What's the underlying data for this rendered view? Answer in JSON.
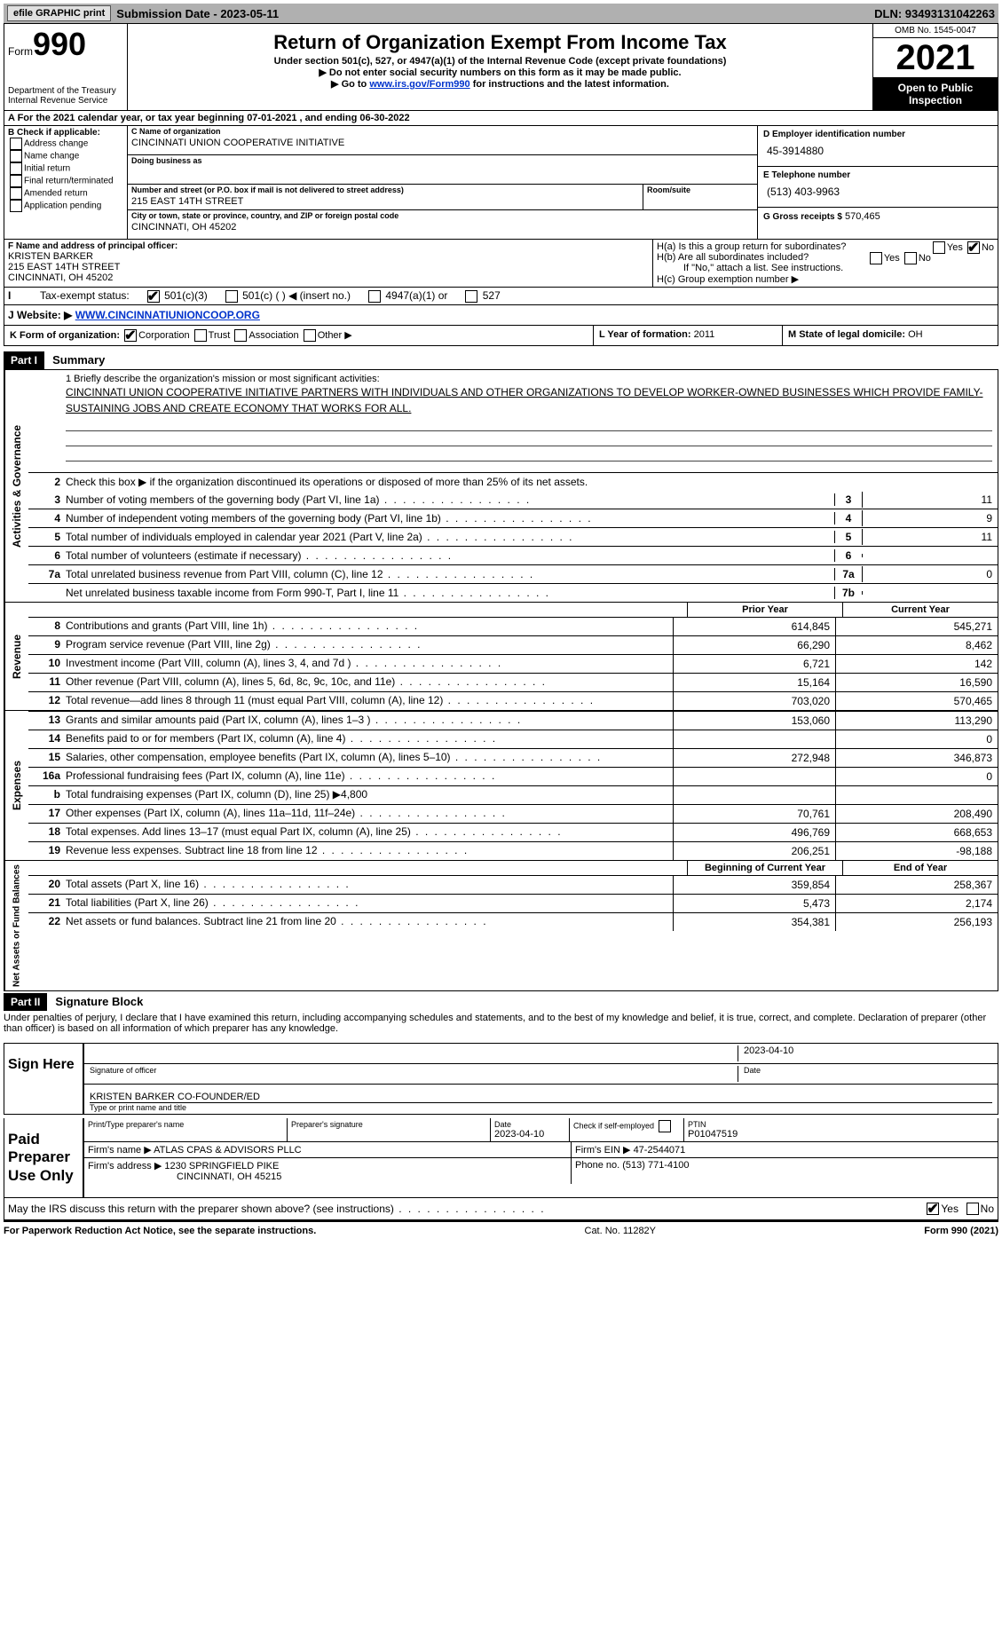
{
  "topbar": {
    "efile": "efile GRAPHIC print",
    "sub_date_label": "Submission Date - 2023-05-11",
    "dln": "DLN: 93493131042263"
  },
  "header": {
    "form_label": "Form",
    "form_num": "990",
    "dept": "Department of the Treasury",
    "irs": "Internal Revenue Service",
    "title": "Return of Organization Exempt From Income Tax",
    "sub1": "Under section 501(c), 527, or 4947(a)(1) of the Internal Revenue Code (except private foundations)",
    "sub2": "▶ Do not enter social security numbers on this form as it may be made public.",
    "sub3_pre": "▶ Go to ",
    "sub3_link": "www.irs.gov/Form990",
    "sub3_post": " for instructions and the latest information.",
    "omb": "OMB No. 1545-0047",
    "year": "2021",
    "inspect": "Open to Public Inspection"
  },
  "row_a": "A For the 2021 calendar year, or tax year beginning 07-01-2021   , and ending 06-30-2022",
  "box_b": {
    "hdr": "B Check if applicable:",
    "opts": [
      "Address change",
      "Name change",
      "Initial return",
      "Final return/terminated",
      "Amended return",
      "Application pending"
    ]
  },
  "box_c": {
    "name_lbl": "C Name of organization",
    "name": "CINCINNATI UNION COOPERATIVE INITIATIVE",
    "dba_lbl": "Doing business as",
    "street_lbl": "Number and street (or P.O. box if mail is not delivered to street address)",
    "room_lbl": "Room/suite",
    "street": "215 EAST 14TH STREET",
    "city_lbl": "City or town, state or province, country, and ZIP or foreign postal code",
    "city": "CINCINNATI, OH  45202"
  },
  "box_d": {
    "ein_lbl": "D Employer identification number",
    "ein": "45-3914880",
    "tel_lbl": "E Telephone number",
    "tel": "(513) 403-9963",
    "gross_lbl": "G Gross receipts $",
    "gross": "570,465"
  },
  "box_f": {
    "lbl": "F  Name and address of principal officer:",
    "name": "KRISTEN BARKER",
    "street": "215 EAST 14TH STREET",
    "city": "CINCINNATI, OH  45202"
  },
  "box_h": {
    "a": "H(a)  Is this a group return for subordinates?",
    "b": "H(b)  Are all subordinates included?",
    "note": "If \"No,\" attach a list. See instructions.",
    "c": "H(c)  Group exemption number ▶",
    "yes": "Yes",
    "no": "No"
  },
  "row_i": {
    "lbl": "Tax-exempt status:",
    "o1": "501(c)(3)",
    "o2": "501(c) (   ) ◀ (insert no.)",
    "o3": "4947(a)(1) or",
    "o4": "527"
  },
  "row_j": {
    "lbl": "J    Website: ▶",
    "val": "WWW.CINCINNATIUNIONCOOP.ORG"
  },
  "row_k": {
    "lbl": "K Form of organization:",
    "opts": [
      "Corporation",
      "Trust",
      "Association",
      "Other ▶"
    ]
  },
  "row_l": {
    "lbl": "L Year of formation:",
    "val": "2011"
  },
  "row_m": {
    "lbl": "M State of legal domicile:",
    "val": "OH"
  },
  "part1": {
    "hdr": "Part I",
    "title": "Summary"
  },
  "summary": {
    "mission_lbl": "1   Briefly describe the organization's mission or most significant activities:",
    "mission": "CINCINNATI UNION COOPERATIVE INITIATIVE PARTNERS WITH INDIVIDUALS AND OTHER ORGANIZATIONS TO DEVELOP WORKER-OWNED BUSINESSES WHICH PROVIDE FAMILY- SUSTAINING JOBS AND CREATE ECONOMY THAT WORKS FOR ALL.",
    "l2": "Check this box ▶     if the organization discontinued its operations or disposed of more than 25% of its net assets.",
    "lines_top": [
      {
        "n": "3",
        "t": "Number of voting members of the governing body (Part VI, line 1a)",
        "box": "3",
        "v": "11"
      },
      {
        "n": "4",
        "t": "Number of independent voting members of the governing body (Part VI, line 1b)",
        "box": "4",
        "v": "9"
      },
      {
        "n": "5",
        "t": "Total number of individuals employed in calendar year 2021 (Part V, line 2a)",
        "box": "5",
        "v": "11"
      },
      {
        "n": "6",
        "t": "Total number of volunteers (estimate if necessary)",
        "box": "6",
        "v": ""
      },
      {
        "n": "7a",
        "t": "Total unrelated business revenue from Part VIII, column (C), line 12",
        "box": "7a",
        "v": "0"
      },
      {
        "n": "",
        "t": "Net unrelated business taxable income from Form 990-T, Part I, line 11",
        "box": "7b",
        "v": ""
      }
    ],
    "col_hdr": {
      "prior": "Prior Year",
      "curr": "Current Year"
    },
    "rev": [
      {
        "n": "8",
        "t": "Contributions and grants (Part VIII, line 1h)",
        "p": "614,845",
        "c": "545,271"
      },
      {
        "n": "9",
        "t": "Program service revenue (Part VIII, line 2g)",
        "p": "66,290",
        "c": "8,462"
      },
      {
        "n": "10",
        "t": "Investment income (Part VIII, column (A), lines 3, 4, and 7d )",
        "p": "6,721",
        "c": "142"
      },
      {
        "n": "11",
        "t": "Other revenue (Part VIII, column (A), lines 5, 6d, 8c, 9c, 10c, and 11e)",
        "p": "15,164",
        "c": "16,590"
      },
      {
        "n": "12",
        "t": "Total revenue—add lines 8 through 11 (must equal Part VIII, column (A), line 12)",
        "p": "703,020",
        "c": "570,465"
      }
    ],
    "exp": [
      {
        "n": "13",
        "t": "Grants and similar amounts paid (Part IX, column (A), lines 1–3 )",
        "p": "153,060",
        "c": "113,290"
      },
      {
        "n": "14",
        "t": "Benefits paid to or for members (Part IX, column (A), line 4)",
        "p": "",
        "c": "0"
      },
      {
        "n": "15",
        "t": "Salaries, other compensation, employee benefits (Part IX, column (A), lines 5–10)",
        "p": "272,948",
        "c": "346,873"
      },
      {
        "n": "16a",
        "t": "Professional fundraising fees (Part IX, column (A), line 11e)",
        "p": "",
        "c": "0"
      },
      {
        "n": "b",
        "t": "Total fundraising expenses (Part IX, column (D), line 25) ▶4,800",
        "p": "SHADE",
        "c": "SHADE"
      },
      {
        "n": "17",
        "t": "Other expenses (Part IX, column (A), lines 11a–11d, 11f–24e)",
        "p": "70,761",
        "c": "208,490"
      },
      {
        "n": "18",
        "t": "Total expenses. Add lines 13–17 (must equal Part IX, column (A), line 25)",
        "p": "496,769",
        "c": "668,653"
      },
      {
        "n": "19",
        "t": "Revenue less expenses. Subtract line 18 from line 12",
        "p": "206,251",
        "c": "-98,188"
      }
    ],
    "na_hdr": {
      "beg": "Beginning of Current Year",
      "end": "End of Year"
    },
    "na": [
      {
        "n": "20",
        "t": "Total assets (Part X, line 16)",
        "p": "359,854",
        "c": "258,367"
      },
      {
        "n": "21",
        "t": "Total liabilities (Part X, line 26)",
        "p": "5,473",
        "c": "2,174"
      },
      {
        "n": "22",
        "t": "Net assets or fund balances. Subtract line 21 from line 20",
        "p": "354,381",
        "c": "256,193"
      }
    ],
    "vtabs": {
      "ag": "Activities & Governance",
      "rev": "Revenue",
      "exp": "Expenses",
      "na": "Net Assets or Fund Balances"
    }
  },
  "part2": {
    "hdr": "Part II",
    "title": "Signature Block"
  },
  "penalties": "Under penalties of perjury, I declare that I have examined this return, including accompanying schedules and statements, and to the best of my knowledge and belief, it is true, correct, and complete. Declaration of preparer (other than officer) is based on all information of which preparer has any knowledge.",
  "sign": {
    "left": "Sign Here",
    "date": "2023-04-10",
    "sig_lbl": "Signature of officer",
    "date_lbl": "Date",
    "name": "KRISTEN BARKER  CO-FOUNDER/ED",
    "name_lbl": "Type or print name and title"
  },
  "prep": {
    "left": "Paid Preparer Use Only",
    "h1": "Print/Type preparer's name",
    "h2": "Preparer's signature",
    "h3": "Date",
    "date": "2023-04-10",
    "h4": "Check        if self-employed",
    "h5": "PTIN",
    "ptin": "P01047519",
    "firm_lbl": "Firm's name      ▶",
    "firm": "ATLAS CPAS & ADVISORS PLLC",
    "ein_lbl": "Firm's EIN ▶",
    "ein": "47-2544071",
    "addr_lbl": "Firm's address ▶",
    "addr1": "1230 SPRINGFIELD PIKE",
    "addr2": "CINCINNATI, OH  45215",
    "phone_lbl": "Phone no.",
    "phone": "(513) 771-4100"
  },
  "discuss": "May the IRS discuss this return with the preparer shown above? (see instructions)",
  "footer": {
    "left": "For Paperwork Reduction Act Notice, see the separate instructions.",
    "mid": "Cat. No. 11282Y",
    "right": "Form 990 (2021)"
  }
}
